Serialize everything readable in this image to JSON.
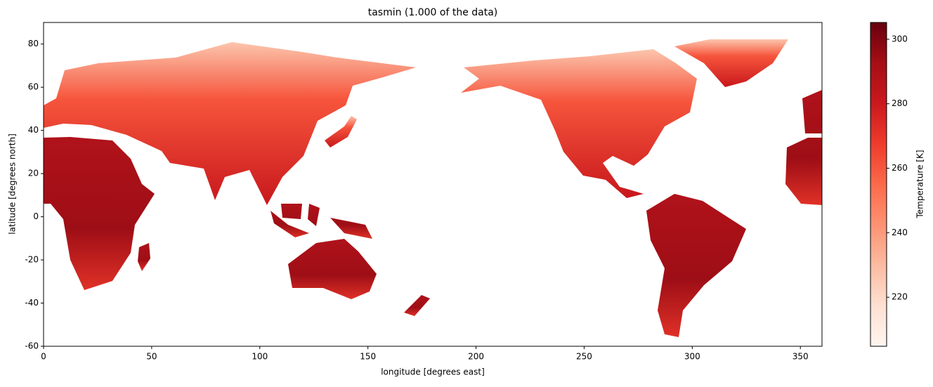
{
  "chart_data": {
    "type": "heatmap",
    "title": "tasmin (1.000 of the data)",
    "xlabel": "longitude [degrees east]",
    "ylabel": "latitude [degrees north]",
    "xlim": [
      0,
      360
    ],
    "ylim": [
      -60,
      90
    ],
    "xticks": [
      0,
      50,
      100,
      150,
      200,
      250,
      300,
      350
    ],
    "yticks": [
      -60,
      -40,
      -20,
      0,
      20,
      40,
      60,
      80
    ],
    "colorbar": {
      "label": "Temperature [K]",
      "lim": [
        204.8,
        305.2
      ],
      "ticks": [
        220,
        240,
        260,
        280,
        300
      ],
      "colors": [
        "#fff5f0",
        "#fee0d2",
        "#fcbba1",
        "#fc9272",
        "#fb6a4a",
        "#ef3b2c",
        "#cb181d",
        "#a50f15",
        "#67000d"
      ]
    }
  }
}
